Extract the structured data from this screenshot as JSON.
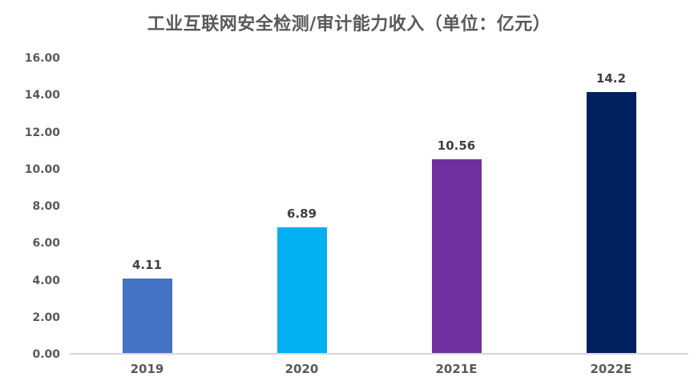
{
  "title": "工业互联网安全检测/审计能力收入（单位：亿元）",
  "chart_data": {
    "type": "bar",
    "title": "工业互联网安全检测/审计能力收入（单位：亿元）",
    "categories": [
      "2019",
      "2020",
      "2021E",
      "2022E"
    ],
    "values": [
      4.11,
      6.89,
      10.56,
      14.2
    ],
    "value_labels": [
      "4.11",
      "6.89",
      "10.56",
      "14.2"
    ],
    "bar_colors": [
      "#4472C4",
      "#00B0F0",
      "#7030A0",
      "#002060"
    ],
    "xlabel": "",
    "ylabel": "",
    "ylim": [
      0,
      16
    ],
    "ytick_step": 2,
    "ytick_labels": [
      "0.00",
      "2.00",
      "4.00",
      "6.00",
      "8.00",
      "10.00",
      "12.00",
      "14.00",
      "16.00"
    ],
    "grid": false,
    "legend": false
  },
  "colors": {
    "title_text": "#595959",
    "axis_text": "#595959",
    "value_label_text": "#404040",
    "axis_line": "#D6D6D6",
    "background": "#FFFFFF"
  }
}
